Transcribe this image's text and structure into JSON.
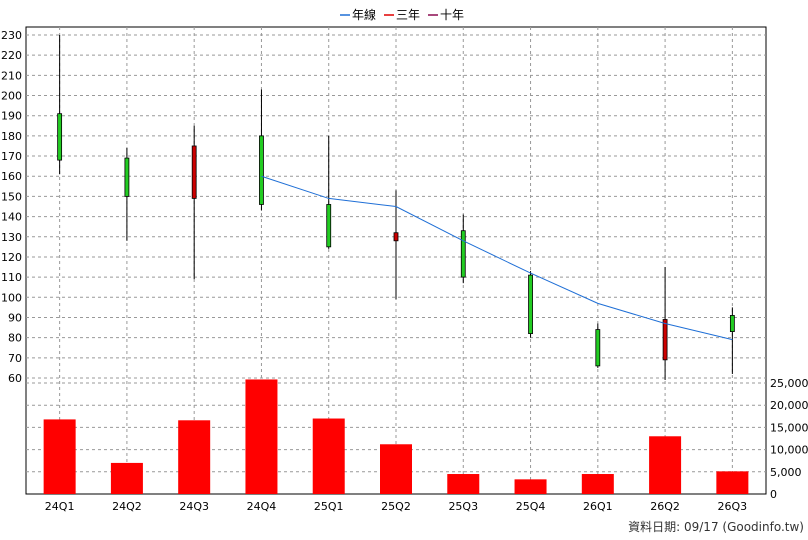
{
  "chart_data": {
    "type": "candlestick",
    "legend": [
      {
        "label": "年線",
        "color": "#1f6fd6"
      },
      {
        "label": "三年",
        "color": "#e00000"
      },
      {
        "label": "十年",
        "color": "#8b0a50"
      }
    ],
    "categories": [
      "24Q1",
      "24Q2",
      "24Q3",
      "24Q4",
      "25Q1",
      "25Q2",
      "25Q3",
      "25Q4",
      "26Q1",
      "26Q2",
      "26Q3"
    ],
    "ohlc": [
      {
        "open": 168,
        "high": 230,
        "low": 161,
        "close": 191
      },
      {
        "open": 150,
        "high": 174,
        "low": 128,
        "close": 169
      },
      {
        "open": 175,
        "high": 185,
        "low": 109,
        "close": 149
      },
      {
        "open": 146,
        "high": 203,
        "low": 143,
        "close": 180
      },
      {
        "open": 125,
        "high": 180,
        "low": 124,
        "close": 146
      },
      {
        "open": 132,
        "high": 153,
        "low": 99,
        "close": 128
      },
      {
        "open": 110,
        "high": 141,
        "low": 107,
        "close": 133
      },
      {
        "open": 82,
        "high": 113,
        "low": 80,
        "close": 111
      },
      {
        "open": 66,
        "high": 87,
        "low": 65,
        "close": 84
      },
      {
        "open": 89,
        "high": 115,
        "low": 59,
        "close": 69
      },
      {
        "open": 83,
        "high": 95,
        "low": 62,
        "close": 91
      }
    ],
    "year_line": {
      "name": "年線",
      "start_index": 3,
      "values": [
        160,
        149,
        145,
        128,
        112,
        97,
        87,
        79
      ]
    },
    "price_axis": {
      "min": 60,
      "max": 230,
      "step": 10
    },
    "volume": [
      16800,
      7000,
      16600,
      25800,
      17000,
      11200,
      4500,
      3300,
      4500,
      13000,
      5100
    ],
    "volume_axis": {
      "min": 0,
      "max": 25000,
      "ticks": [
        "0",
        "5,000",
        "10,000",
        "15,000",
        "20,000",
        "25,000"
      ],
      "tick_values": [
        0,
        5000,
        10000,
        15000,
        20000,
        25000
      ]
    },
    "up_color": "#22cc22",
    "down_color": "#cc0000",
    "volume_color": "#ff0000",
    "grid": true
  },
  "footer": "資料日期: 09/17  (Goodinfo.tw)"
}
